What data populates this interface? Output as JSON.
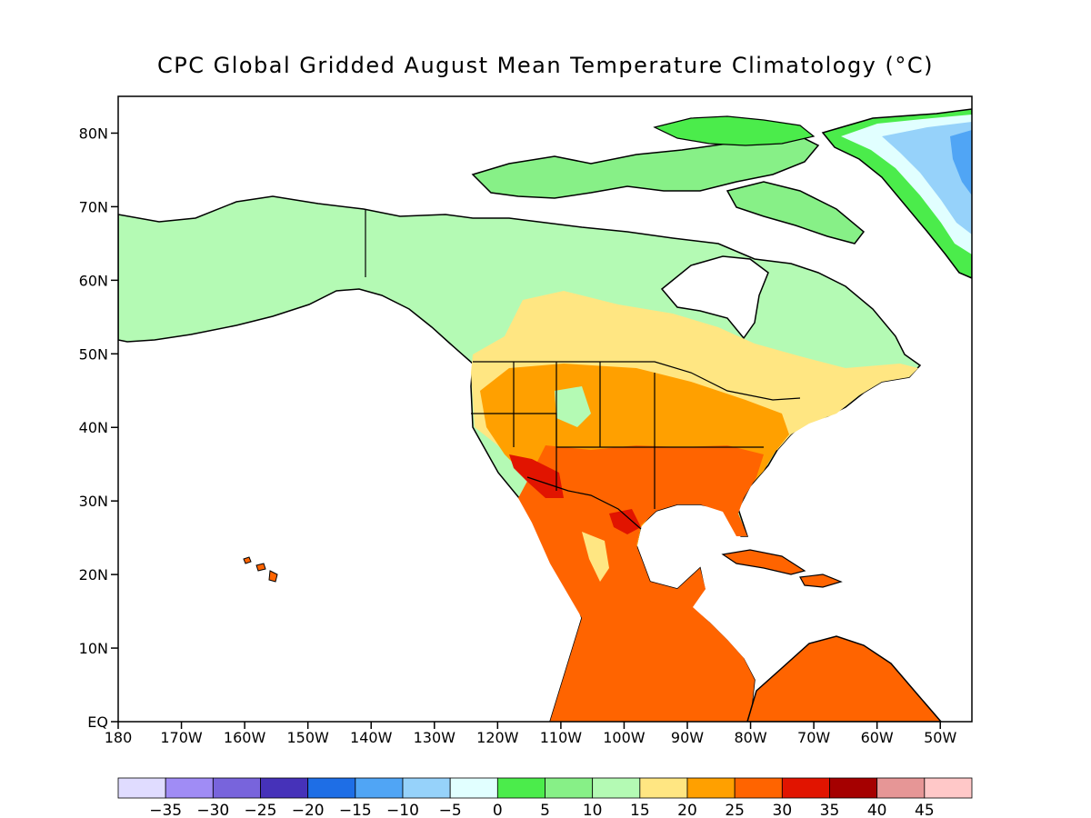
{
  "title": "CPC Global Gridded August Mean Temperature Climatology (°C)",
  "map": {
    "lon_range": [
      -180,
      -45
    ],
    "lat_range": [
      0,
      85
    ],
    "lat_ticks": [
      {
        "value": 80,
        "label": "80N"
      },
      {
        "value": 70,
        "label": "70N"
      },
      {
        "value": 60,
        "label": "60N"
      },
      {
        "value": 50,
        "label": "50N"
      },
      {
        "value": 40,
        "label": "40N"
      },
      {
        "value": 30,
        "label": "30N"
      },
      {
        "value": 20,
        "label": "20N"
      },
      {
        "value": 10,
        "label": "10N"
      },
      {
        "value": 0,
        "label": "EQ"
      }
    ],
    "lon_ticks": [
      {
        "value": -180,
        "label": "180"
      },
      {
        "value": -170,
        "label": "170W"
      },
      {
        "value": -160,
        "label": "160W"
      },
      {
        "value": -150,
        "label": "150W"
      },
      {
        "value": -140,
        "label": "140W"
      },
      {
        "value": -130,
        "label": "130W"
      },
      {
        "value": -120,
        "label": "120W"
      },
      {
        "value": -110,
        "label": "110W"
      },
      {
        "value": -100,
        "label": "100W"
      },
      {
        "value": -90,
        "label": "90W"
      },
      {
        "value": -80,
        "label": "80W"
      },
      {
        "value": -70,
        "label": "70W"
      },
      {
        "value": -60,
        "label": "60W"
      },
      {
        "value": -50,
        "label": "50W"
      }
    ]
  },
  "colorbar": {
    "colors": [
      "#e0dcff",
      "#a08cf5",
      "#7864dc",
      "#4632b9",
      "#1e6ee6",
      "#50a5f5",
      "#96d2fa",
      "#e1ffff",
      "#4bec4b",
      "#87f087",
      "#b4fab4",
      "#ffe682",
      "#ffa000",
      "#ff6400",
      "#e11400",
      "#a50000",
      "#e69696",
      "#ffc8c8"
    ],
    "labels": [
      "−35",
      "−30",
      "−25",
      "−20",
      "−15",
      "−10",
      "−5",
      "0",
      "5",
      "10",
      "15",
      "20",
      "25",
      "30",
      "35",
      "40",
      "45"
    ]
  }
}
